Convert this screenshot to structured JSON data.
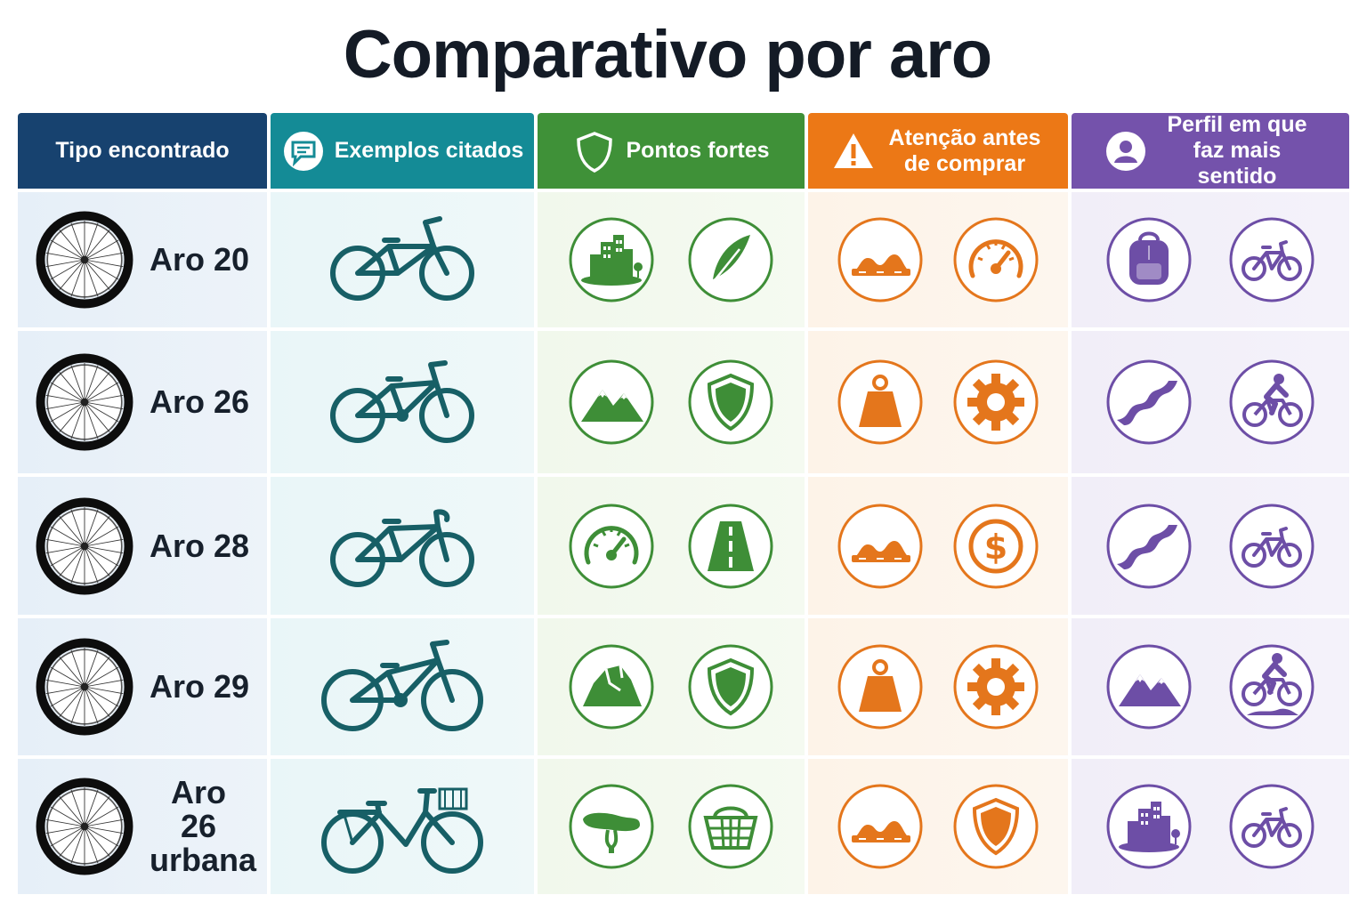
{
  "title": "Comparativo por aro",
  "headers": [
    {
      "label": "Tipo encontrado",
      "icon": null,
      "color": "#17426f"
    },
    {
      "label": "Exemplos citados",
      "icon": "chat-bubble-icon",
      "color": "#148b96"
    },
    {
      "label": "Pontos fortes",
      "icon": "shield-icon",
      "color": "#3f9138"
    },
    {
      "label": "Atenção antes de comprar",
      "icon": "warning-icon",
      "color": "#ec7816"
    },
    {
      "label": "Perfil em que faz mais sentido",
      "icon": "user-icon",
      "color": "#7452ab"
    }
  ],
  "rows": [
    {
      "label": "Aro 20",
      "bike": "bmx-bike",
      "strengths": [
        "city-icon",
        "feather-icon"
      ],
      "attention": [
        "bumpy-road-icon",
        "speedometer-icon"
      ],
      "profile": [
        "backpack-icon",
        "small-bike-icon"
      ]
    },
    {
      "label": "Aro 26",
      "bike": "mountain-bike",
      "strengths": [
        "mountains-icon",
        "shield-icon"
      ],
      "attention": [
        "weight-icon",
        "gear-icon"
      ],
      "profile": [
        "winding-road-icon",
        "cyclist-icon"
      ]
    },
    {
      "label": "Aro 28",
      "bike": "road-bike",
      "strengths": [
        "speedometer-icon",
        "road-icon"
      ],
      "attention": [
        "bumpy-road-icon",
        "dollar-coin-icon"
      ],
      "profile": [
        "winding-road-icon",
        "bike-icon"
      ]
    },
    {
      "label": "Aro 29",
      "bike": "mtb-29-bike",
      "strengths": [
        "rock-icon",
        "shield-icon"
      ],
      "attention": [
        "weight-icon",
        "gear-icon"
      ],
      "profile": [
        "mountains-icon",
        "trail-cyclist-icon"
      ]
    },
    {
      "label": "Aro 26 urbana",
      "bike": "city-bike-with-basket",
      "strengths": [
        "saddle-icon",
        "basket-icon"
      ],
      "attention": [
        "bumpy-road-icon",
        "shield-icon"
      ],
      "profile": [
        "city-icon",
        "bike-icon"
      ]
    }
  ],
  "colors": {
    "green": "#3e8e37",
    "orange": "#e4761c",
    "purple": "#6d4ea6",
    "teal": "#175f66"
  }
}
